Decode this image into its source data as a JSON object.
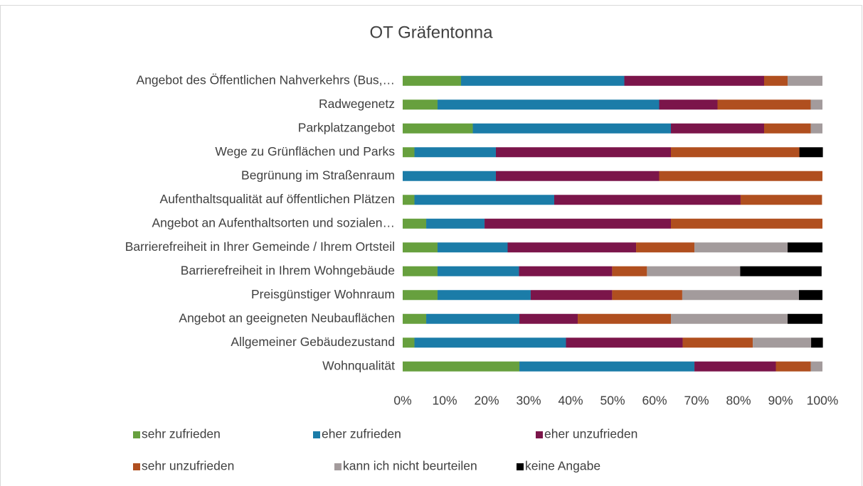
{
  "chart_data": {
    "type": "stacked-bar-horizontal",
    "title": "OT Gräfentonna",
    "categories": [
      "Angebot des Öffentlichen Nahverkehrs (Bus,…",
      "Radwegenetz",
      "Parkplatzangebot",
      "Wege zu Grünflächen und Parks",
      "Begrünung im Straßenraum",
      "Aufenthaltsqualität auf öffentlichen Plätzen",
      "Angebot an Aufenthaltsorten und sozialen…",
      "Barrierefreiheit in Ihrer Gemeinde / Ihrem Ortsteil",
      "Barrierefreiheit in Ihrem Wohngebäude",
      "Preisgünstiger Wohnraum",
      "Angebot an geeigneten Neubauflächen",
      "Allgemeiner Gebäudezustand",
      "Wohnqualität"
    ],
    "series": [
      {
        "name": "sehr zufrieden",
        "color": "#67a03e",
        "values": [
          13.9,
          8.3,
          16.7,
          2.8,
          0,
          2.8,
          5.6,
          8.3,
          8.3,
          8.3,
          5.6,
          2.8,
          27.8
        ]
      },
      {
        "name": "eher zufrieden",
        "color": "#1b7ca8",
        "values": [
          38.9,
          52.8,
          47.2,
          19.4,
          22.2,
          33.3,
          13.9,
          16.7,
          19.4,
          22.2,
          22.2,
          36.1,
          41.7
        ]
      },
      {
        "name": "eher unzufrieden",
        "color": "#7b154a",
        "values": [
          33.3,
          13.9,
          22.2,
          41.7,
          38.9,
          44.4,
          44.4,
          30.6,
          22.2,
          19.4,
          13.9,
          27.8,
          19.4
        ]
      },
      {
        "name": "sehr unzufrieden",
        "color": "#b04f1f",
        "values": [
          5.6,
          22.2,
          11.1,
          30.6,
          38.9,
          19.4,
          36.1,
          13.9,
          8.3,
          16.7,
          22.2,
          16.7,
          8.3
        ]
      },
      {
        "name": "kann ich nicht beurteilen",
        "color": "#a39b9c",
        "values": [
          8.3,
          2.8,
          2.8,
          0,
          0,
          0,
          0,
          22.2,
          22.2,
          27.8,
          27.8,
          13.9,
          2.8
        ]
      },
      {
        "name": "keine Angabe",
        "color": "#000000",
        "values": [
          0,
          0,
          0,
          5.6,
          0,
          0,
          0,
          8.3,
          19.4,
          5.6,
          8.3,
          2.8,
          0
        ]
      }
    ],
    "xlim": [
      0,
      100
    ],
    "xticks": [
      {
        "value": 0,
        "label": "0%"
      },
      {
        "value": 10,
        "label": "10%"
      },
      {
        "value": 20,
        "label": "20%"
      },
      {
        "value": 30,
        "label": "30%"
      },
      {
        "value": 40,
        "label": "40%"
      },
      {
        "value": 50,
        "label": "50%"
      },
      {
        "value": 60,
        "label": "60%"
      },
      {
        "value": 70,
        "label": "70%"
      },
      {
        "value": 80,
        "label": "80%"
      },
      {
        "value": 90,
        "label": "90%"
      },
      {
        "value": 100,
        "label": "100%"
      }
    ],
    "legend": "bottom"
  }
}
